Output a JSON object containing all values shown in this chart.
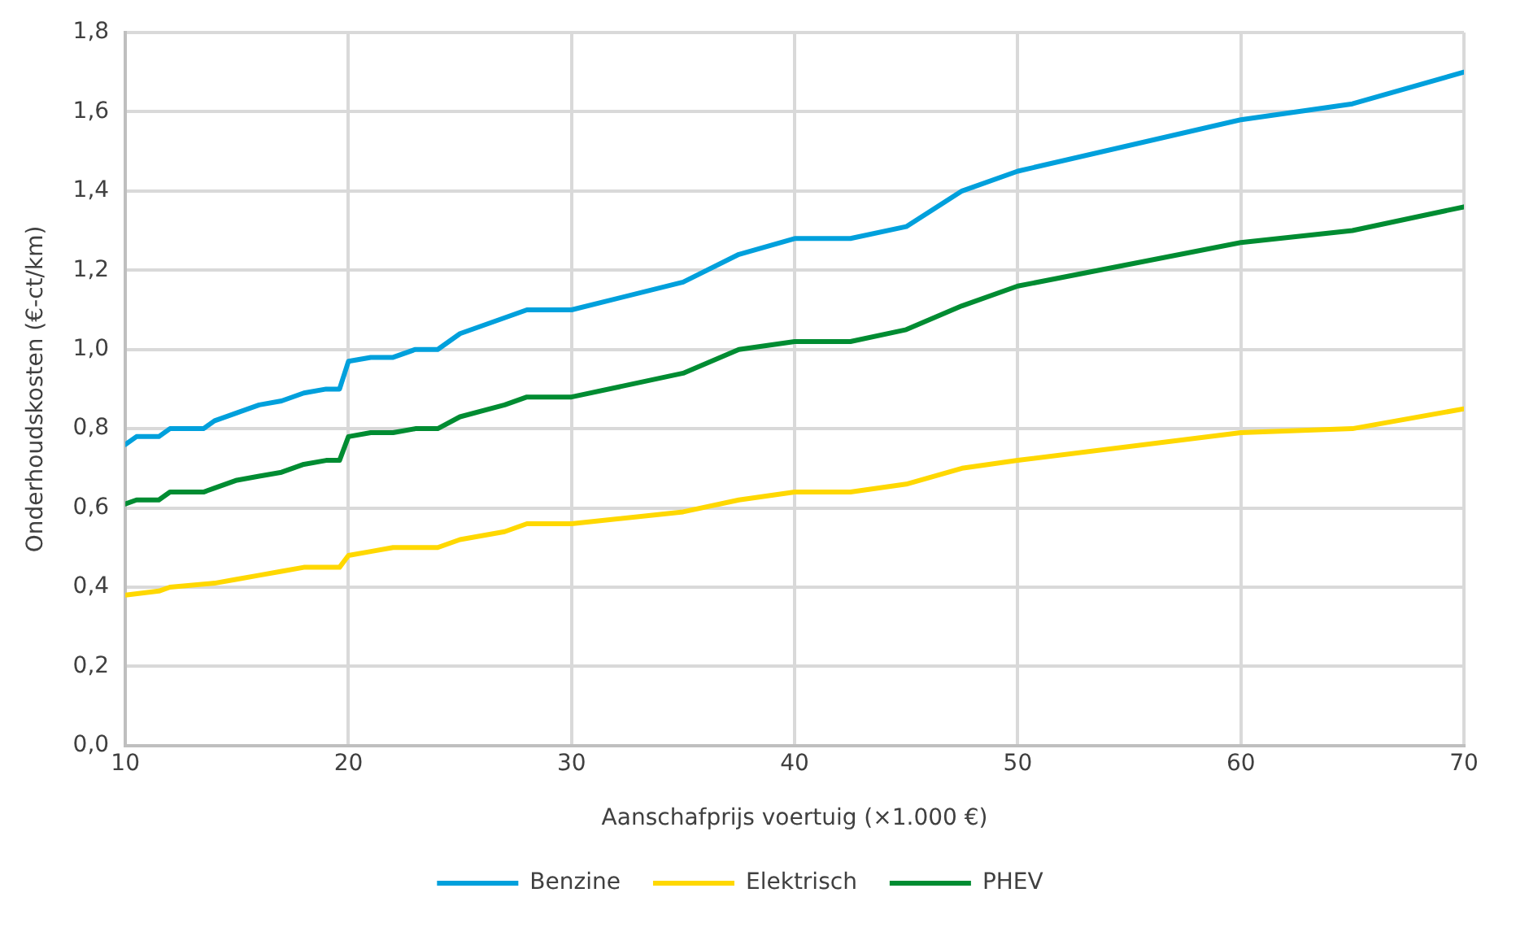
{
  "chart_data": {
    "type": "line",
    "xlabel": "Aanschafprijs voertuig (×1.000 €)",
    "ylabel": "Onderhoudskosten (€-ct/km)",
    "xlim": [
      10,
      70
    ],
    "xticks": [
      10,
      20,
      30,
      40,
      50,
      60,
      70
    ],
    "ylim": [
      0,
      1.8
    ],
    "yticks": [
      {
        "value": 0,
        "label": "0,0"
      },
      {
        "value": 0.2,
        "label": "0,2"
      },
      {
        "value": 0.4,
        "label": "0,4"
      },
      {
        "value": 0.6,
        "label": "0,6"
      },
      {
        "value": 0.8,
        "label": "0,8"
      },
      {
        "value": 1,
        "label": "1,0"
      },
      {
        "value": 1.2,
        "label": "1,2"
      },
      {
        "value": 1.4,
        "label": "1,4"
      },
      {
        "value": 1.6,
        "label": "1,6"
      },
      {
        "value": 1.8,
        "label": "1,8"
      }
    ],
    "grid": true,
    "legend": "bottom",
    "marker": "none",
    "line_style": "solid",
    "series": [
      {
        "name": "Benzine",
        "color": "#00a0dc",
        "x": [
          10,
          10.5,
          11.5,
          12,
          13.5,
          14,
          15,
          16,
          17,
          18,
          19,
          19.6,
          20,
          21,
          22,
          23,
          24,
          25,
          27,
          28,
          30,
          35,
          37.5,
          40,
          42.5,
          45,
          47.5,
          50,
          60,
          65,
          70
        ],
        "values": [
          0.76,
          0.78,
          0.78,
          0.8,
          0.8,
          0.82,
          0.84,
          0.86,
          0.87,
          0.89,
          0.9,
          0.9,
          0.97,
          0.98,
          0.98,
          1.0,
          1.0,
          1.04,
          1.08,
          1.1,
          1.1,
          1.17,
          1.24,
          1.28,
          1.28,
          1.31,
          1.4,
          1.45,
          1.58,
          1.62,
          1.7
        ]
      },
      {
        "name": "Elektrisch",
        "color": "#ffd800",
        "x": [
          10,
          11.5,
          12,
          14,
          15,
          16,
          17,
          18,
          19.6,
          20,
          21,
          22,
          24,
          25,
          27,
          28,
          30,
          35,
          37.5,
          40,
          42.5,
          45,
          47.5,
          50,
          60,
          65,
          70
        ],
        "values": [
          0.38,
          0.39,
          0.4,
          0.41,
          0.42,
          0.43,
          0.44,
          0.45,
          0.45,
          0.48,
          0.49,
          0.5,
          0.5,
          0.52,
          0.54,
          0.56,
          0.56,
          0.59,
          0.62,
          0.64,
          0.64,
          0.66,
          0.7,
          0.72,
          0.79,
          0.8,
          0.85
        ]
      },
      {
        "name": "PHEV",
        "color": "#008c32",
        "x": [
          10,
          10.5,
          11.5,
          12,
          13.5,
          14,
          15,
          16,
          17,
          18,
          19,
          19.6,
          20,
          21,
          22,
          23,
          24,
          25,
          27,
          28,
          30,
          35,
          37.5,
          40,
          42.5,
          45,
          47.5,
          50,
          60,
          65,
          70
        ],
        "values": [
          0.61,
          0.62,
          0.62,
          0.64,
          0.64,
          0.65,
          0.67,
          0.68,
          0.69,
          0.71,
          0.72,
          0.72,
          0.78,
          0.79,
          0.79,
          0.8,
          0.8,
          0.83,
          0.86,
          0.88,
          0.88,
          0.94,
          1.0,
          1.02,
          1.02,
          1.05,
          1.11,
          1.16,
          1.27,
          1.3,
          1.36
        ]
      }
    ]
  }
}
